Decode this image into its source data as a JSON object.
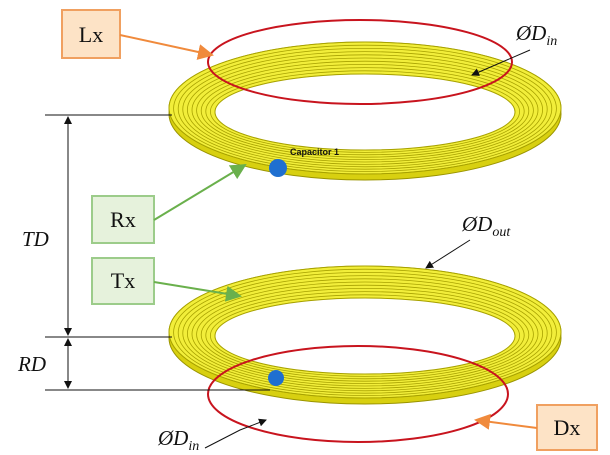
{
  "callouts": {
    "lx": "Lx",
    "rx": "Rx",
    "tx": "Tx",
    "dx": "Dx"
  },
  "component_label": "Capacitor 1",
  "dimensions": {
    "top_inner": {
      "symbol": "ØD",
      "sub": "in"
    },
    "outer": {
      "symbol": "ØD",
      "sub": "out"
    },
    "bottom_inner": {
      "symbol": "ØD",
      "sub": "in"
    },
    "td": "TD",
    "rd": "RD"
  }
}
